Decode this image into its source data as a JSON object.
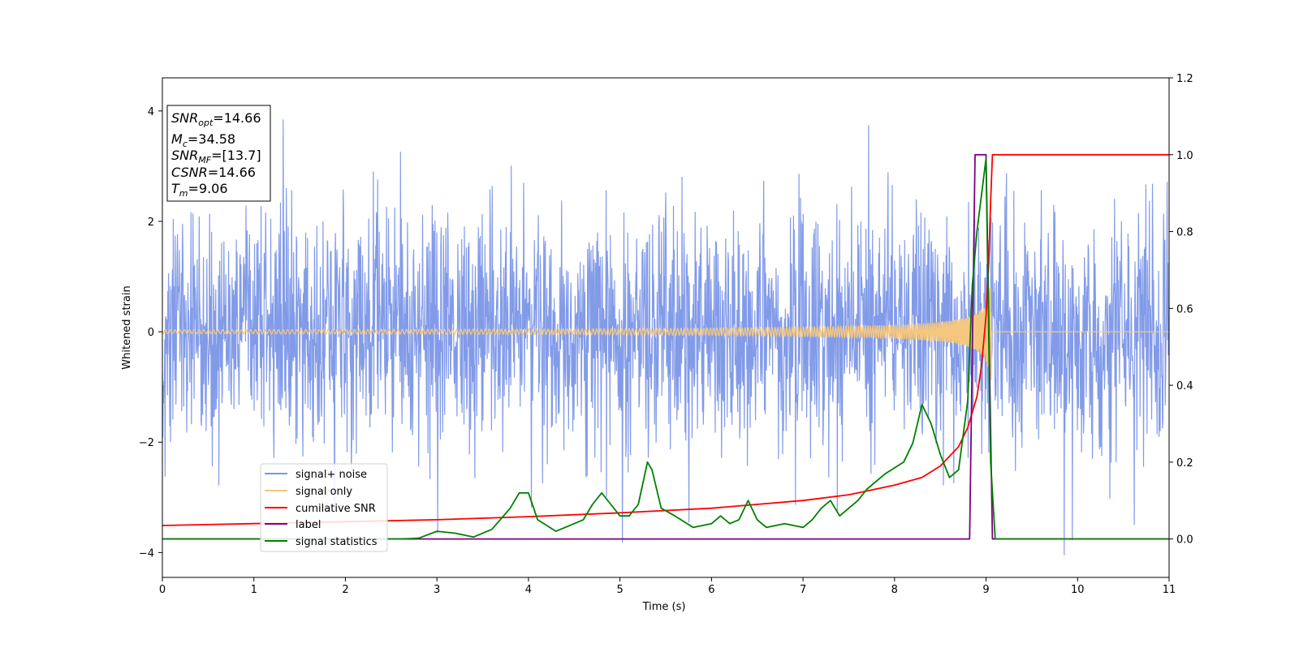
{
  "chart_data": {
    "type": "line",
    "xlabel": "Time (s)",
    "ylabel": "Whitened strain",
    "xlim": [
      0,
      11
    ],
    "ylim": [
      -4.45,
      4.6
    ],
    "y2lim": [
      -0.1,
      1.2
    ],
    "x_ticks": [
      "0",
      "1",
      "2",
      "3",
      "4",
      "5",
      "6",
      "7",
      "8",
      "9",
      "10",
      "11"
    ],
    "y_ticks": [
      "4",
      "2",
      "0",
      "−2",
      "−4"
    ],
    "y2_ticks": [
      "0.0",
      "0.2",
      "0.4",
      "0.6",
      "0.8",
      "1.0",
      "1.2"
    ],
    "grid": false,
    "legend_position": "lower-left",
    "info_box": {
      "snr_opt": {
        "sym": "SNR",
        "sub": "opt",
        "value": "=14.66"
      },
      "mc": {
        "sym": "M",
        "sub": "c",
        "value": "=34.58"
      },
      "snr_mf": {
        "sym": "SNR",
        "sub": "MF",
        "value": "=[13.7]"
      },
      "csnr": {
        "sym": "CSNR",
        "value": "=14.66"
      },
      "tm": {
        "sym": "T",
        "sub": "m",
        "value": "=9.06"
      }
    },
    "series": [
      {
        "name": "signal+ noise",
        "color": "#7b96e8",
        "axis": "left",
        "description": "noise, roughly ±2.5 amplitude with spikes to ±4"
      },
      {
        "name": "signal only",
        "color": "#f5c77e",
        "axis": "left",
        "description": "chirp growing to ~±1.2 near t=9, zero after 9.06"
      },
      {
        "name": "cumilative SNR",
        "color": "#ff0000",
        "axis": "right",
        "points": [
          [
            0,
            0.035
          ],
          [
            1,
            0.04
          ],
          [
            2,
            0.045
          ],
          [
            3,
            0.05
          ],
          [
            4,
            0.058
          ],
          [
            5,
            0.068
          ],
          [
            6,
            0.08
          ],
          [
            7,
            0.1
          ],
          [
            7.5,
            0.115
          ],
          [
            8,
            0.14
          ],
          [
            8.3,
            0.16
          ],
          [
            8.5,
            0.19
          ],
          [
            8.7,
            0.24
          ],
          [
            8.8,
            0.29
          ],
          [
            8.9,
            0.37
          ],
          [
            8.95,
            0.45
          ],
          [
            9.0,
            0.58
          ],
          [
            9.03,
            0.72
          ],
          [
            9.05,
            0.88
          ],
          [
            9.07,
            1.0
          ],
          [
            11,
            1.0
          ]
        ]
      },
      {
        "name": "label",
        "color": "#800080",
        "axis": "right",
        "points": [
          [
            0,
            0
          ],
          [
            8.82,
            0
          ],
          [
            8.88,
            1.0
          ],
          [
            9.0,
            1.0
          ],
          [
            9.07,
            0
          ],
          [
            11,
            0
          ]
        ]
      },
      {
        "name": "signal statistics",
        "color": "#008000",
        "axis": "right",
        "points": [
          [
            0,
            0.0
          ],
          [
            2.6,
            0.0
          ],
          [
            2.8,
            0.002
          ],
          [
            3.0,
            0.02
          ],
          [
            3.2,
            0.015
          ],
          [
            3.4,
            0.005
          ],
          [
            3.6,
            0.025
          ],
          [
            3.8,
            0.08
          ],
          [
            3.9,
            0.12
          ],
          [
            4.0,
            0.12
          ],
          [
            4.1,
            0.05
          ],
          [
            4.3,
            0.02
          ],
          [
            4.4,
            0.03
          ],
          [
            4.6,
            0.05
          ],
          [
            4.7,
            0.09
          ],
          [
            4.8,
            0.12
          ],
          [
            4.9,
            0.09
          ],
          [
            5.0,
            0.06
          ],
          [
            5.1,
            0.06
          ],
          [
            5.2,
            0.09
          ],
          [
            5.3,
            0.2
          ],
          [
            5.35,
            0.18
          ],
          [
            5.45,
            0.08
          ],
          [
            5.6,
            0.06
          ],
          [
            5.8,
            0.03
          ],
          [
            6.0,
            0.04
          ],
          [
            6.1,
            0.06
          ],
          [
            6.2,
            0.04
          ],
          [
            6.3,
            0.05
          ],
          [
            6.4,
            0.1
          ],
          [
            6.5,
            0.05
          ],
          [
            6.6,
            0.03
          ],
          [
            6.8,
            0.04
          ],
          [
            7.0,
            0.03
          ],
          [
            7.1,
            0.05
          ],
          [
            7.2,
            0.08
          ],
          [
            7.3,
            0.1
          ],
          [
            7.4,
            0.06
          ],
          [
            7.6,
            0.1
          ],
          [
            7.7,
            0.13
          ],
          [
            7.9,
            0.17
          ],
          [
            8.1,
            0.2
          ],
          [
            8.2,
            0.25
          ],
          [
            8.3,
            0.35
          ],
          [
            8.4,
            0.3
          ],
          [
            8.5,
            0.22
          ],
          [
            8.6,
            0.16
          ],
          [
            8.7,
            0.18
          ],
          [
            8.8,
            0.36
          ],
          [
            8.85,
            0.66
          ],
          [
            8.9,
            0.8
          ],
          [
            9.0,
            0.99
          ],
          [
            9.05,
            0.2
          ],
          [
            9.1,
            0.0
          ],
          [
            11,
            0.0
          ]
        ]
      }
    ]
  }
}
